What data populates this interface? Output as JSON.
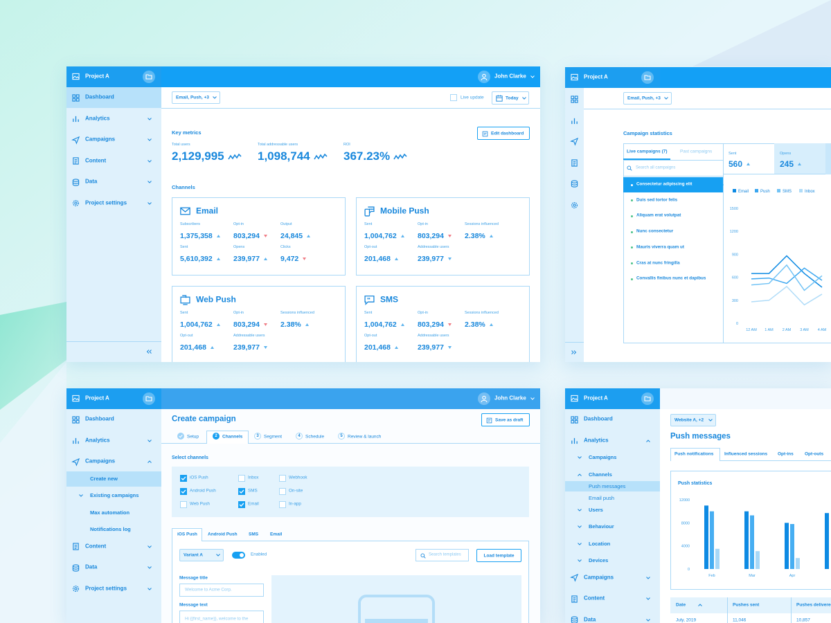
{
  "dashboard": {
    "project": "Project A",
    "user": "John Clarke",
    "nav": [
      {
        "label": "Dashboard",
        "level": 0,
        "icon": "grid",
        "active": true
      },
      {
        "label": "Analytics",
        "level": 0,
        "icon": "bars",
        "chevron": "down"
      },
      {
        "label": "Campaigns",
        "level": 0,
        "icon": "send",
        "chevron": "down"
      },
      {
        "label": "Content",
        "level": 0,
        "icon": "doc",
        "chevron": "down"
      },
      {
        "label": "Data",
        "level": 0,
        "icon": "db",
        "chevron": "down"
      },
      {
        "label": "Project settings",
        "level": 0,
        "icon": "gear",
        "chevron": "down"
      }
    ],
    "filter": "Email, Push, +3",
    "live_update": "Live update",
    "date": "Today",
    "key_metrics": "Key metrics",
    "edit_button": "Edit dashboard",
    "metrics": [
      {
        "label": "Total users",
        "value": "2,129,995"
      },
      {
        "label": "Total addressable users",
        "value": "1,098,744"
      },
      {
        "label": "ROI",
        "value": "367.23%"
      }
    ],
    "channels_heading": "Channels",
    "channels": [
      {
        "name": "Email",
        "icon": "mail",
        "stats": [
          {
            "label": "Subscribers",
            "value": "1,375,358",
            "trend": "up"
          },
          {
            "label": "Opt-in",
            "value": "803,294",
            "trend": "down-bad"
          },
          {
            "label": "Output",
            "value": "24,845",
            "trend": "up"
          },
          {
            "label": "Sent",
            "value": "5,610,392",
            "trend": "up"
          },
          {
            "label": "Opens",
            "value": "239,977",
            "trend": "up"
          },
          {
            "label": "Clicks",
            "value": "9,472",
            "trend": "down-bad"
          }
        ]
      },
      {
        "name": "Mobile Push",
        "icon": "mobile",
        "stats": [
          {
            "label": "Sent",
            "value": "1,004,762",
            "trend": "up"
          },
          {
            "label": "Opt-in",
            "value": "803,294",
            "trend": "down-bad"
          },
          {
            "label": "Sessions influenced",
            "value": "2.38%",
            "trend": "up"
          },
          {
            "label": "Opt-out",
            "value": "201,468",
            "trend": "up"
          },
          {
            "label": "Addressable users",
            "value": "239,977",
            "trend": "down"
          }
        ]
      },
      {
        "name": "Web Push",
        "icon": "web",
        "stats": [
          {
            "label": "Sent",
            "value": "1,004,762",
            "trend": "up"
          },
          {
            "label": "Opt-in",
            "value": "803,294",
            "trend": "down-bad"
          },
          {
            "label": "Sessions influenced",
            "value": "2.38%",
            "trend": "up"
          },
          {
            "label": "Opt-out",
            "value": "201,468",
            "trend": "up"
          },
          {
            "label": "Addressable users",
            "value": "239,977",
            "trend": "down"
          }
        ]
      },
      {
        "name": "SMS",
        "icon": "sms",
        "stats": [
          {
            "label": "Sent",
            "value": "1,004,762",
            "trend": "up"
          },
          {
            "label": "Opt-in",
            "value": "803,294",
            "trend": "down-bad"
          },
          {
            "label": "Sessions influenced",
            "value": "2.38%",
            "trend": "up"
          },
          {
            "label": "Opt-out",
            "value": "201,468",
            "trend": "up"
          },
          {
            "label": "Addressable users",
            "value": "239,977",
            "trend": "down"
          }
        ]
      }
    ]
  },
  "statistics": {
    "project": "Project A",
    "filter": "Email, Push, +3",
    "title": "Campaign statistics",
    "tabs": [
      "Live campaigns (7)",
      "Past campaigns"
    ],
    "search": "Search all campaigns",
    "campaigns": [
      "Consectetur adipiscing elit",
      "Duis sed tortor felis",
      "Aliquam erat volutpat",
      "Nunc consectetur",
      "Mauris viverra quam ut",
      "Cras at nunc fringilla",
      "Convallis finibus nunc et dapibus"
    ],
    "summary": [
      {
        "label": "Sent",
        "value": "560"
      },
      {
        "label": "Opens",
        "value": "245"
      }
    ]
  },
  "create": {
    "project": "Project A",
    "user": "John Clarke",
    "nav": [
      {
        "label": "Dashboard",
        "level": 0,
        "icon": "grid"
      },
      {
        "label": "Analytics",
        "level": 0,
        "icon": "bars",
        "chevron": "down"
      },
      {
        "label": "Campaigns",
        "level": 0,
        "icon": "send",
        "chevron": "up"
      },
      {
        "label": "Create new",
        "level": 1,
        "active": true
      },
      {
        "label": "Existing campaigns",
        "level": 1,
        "chevron": "down"
      },
      {
        "label": "Max automation",
        "level": 1
      },
      {
        "label": "Notifications log",
        "level": 1
      },
      {
        "label": "Content",
        "level": 0,
        "icon": "doc",
        "chevron": "down"
      },
      {
        "label": "Data",
        "level": 0,
        "icon": "db",
        "chevron": "down"
      },
      {
        "label": "Project settings",
        "level": 0,
        "icon": "gear",
        "chevron": "down"
      }
    ],
    "title": "Create campaign",
    "save": "Save as draft",
    "steps": [
      {
        "label": "Setup",
        "done": true
      },
      {
        "number": "2",
        "label": "Channels",
        "active": true
      },
      {
        "number": "3",
        "label": "Segment"
      },
      {
        "number": "4",
        "label": "Schedule"
      },
      {
        "number": "5",
        "label": "Review & launch"
      }
    ],
    "select_channels": "Select channels",
    "channel_options": [
      {
        "label": "iOS Push",
        "checked": true
      },
      {
        "label": "Android Push",
        "checked": true
      },
      {
        "label": "Web Push",
        "checked": false
      },
      {
        "label": "Inbox",
        "checked": false
      },
      {
        "label": "SMS",
        "checked": true
      },
      {
        "label": "Email",
        "checked": true
      },
      {
        "label": "Webhook",
        "checked": false
      },
      {
        "label": "On-site",
        "checked": false
      },
      {
        "label": "In-app",
        "checked": false
      }
    ],
    "editor_tabs": [
      "iOS Push",
      "Android Push",
      "SMS",
      "Email"
    ],
    "variant": "Variant A",
    "enabled": "Enabled",
    "search_templates": "Search templates",
    "load_template": "Load template",
    "message_title_label": "Message title",
    "message_title_placeholder": "Welcome to Acme Corp.",
    "message_text_label": "Message text",
    "message_text_placeholder": "Hi {{first_name}}, welcome to the"
  },
  "push": {
    "project": "Project A",
    "nav": [
      {
        "label": "Dashboard",
        "level": 0,
        "icon": "grid"
      },
      {
        "label": "Analytics",
        "level": 0,
        "icon": "bars",
        "chevron": "up"
      },
      {
        "label": "Campaigns",
        "level": 1,
        "chevron": "down"
      },
      {
        "label": "Channels",
        "level": 1,
        "chevron": "up"
      },
      {
        "label": "Push messages",
        "level": 2,
        "active": true
      },
      {
        "label": "Email push",
        "level": 2
      },
      {
        "label": "Users",
        "level": 1,
        "chevron": "down"
      },
      {
        "label": "Behaviour",
        "level": 1,
        "chevron": "down"
      },
      {
        "label": "Location",
        "level": 1,
        "chevron": "down"
      },
      {
        "label": "Devices",
        "level": 1,
        "chevron": "down"
      },
      {
        "label": "Campaigns",
        "level": 0,
        "icon": "send",
        "chevron": "down"
      },
      {
        "label": "Content",
        "level": 0,
        "icon": "doc",
        "chevron": "down"
      },
      {
        "label": "Data",
        "level": 0,
        "icon": "db",
        "chevron": "down"
      }
    ],
    "filter": "Website A, +2",
    "title": "Push messages",
    "tabs": [
      "Push notifications",
      "Influenced sessions",
      "Opt-ins",
      "Opt-outs"
    ],
    "table": {
      "columns": [
        "Date",
        "Pushes sent",
        "Pushes delivered"
      ],
      "rows": [
        [
          "July, 2019",
          "11,046",
          "10,857"
        ]
      ]
    }
  },
  "chart_data": [
    {
      "type": "line",
      "categories": [
        "12 AM",
        "1 AM",
        "2 AM",
        "3 AM",
        "4 AM"
      ],
      "series": [
        {
          "name": "Email",
          "color": "#0d8ae3",
          "values": [
            650,
            650,
            880,
            650,
            470
          ]
        },
        {
          "name": "Push",
          "color": "#3aa6f0",
          "values": [
            580,
            590,
            520,
            720,
            560
          ]
        },
        {
          "name": "SMS",
          "color": "#72c3f5",
          "values": [
            500,
            520,
            760,
            430,
            620
          ]
        },
        {
          "name": "Inbox",
          "color": "#b0dcf8",
          "values": [
            280,
            300,
            480,
            240,
            380
          ]
        }
      ],
      "ylim": [
        0,
        1500
      ],
      "yticks": [
        0,
        300,
        600,
        900,
        1200,
        1500
      ],
      "grid": false
    },
    {
      "type": "bar",
      "title": "Push statistics",
      "categories": [
        "Feb",
        "Mar",
        "Apr",
        null
      ],
      "series": [
        {
          "color": "#0d8ae3",
          "values": [
            11000,
            10000,
            8000,
            9700
          ]
        },
        {
          "color": "#47aef2",
          "values": [
            10000,
            9300,
            7800,
            null
          ]
        },
        {
          "color": "#a8d8f7",
          "values": [
            3500,
            3100,
            1900,
            null
          ]
        }
      ],
      "ylim": [
        0,
        12000
      ],
      "yticks": [
        0,
        4000,
        8000,
        12000
      ],
      "grid": false
    }
  ]
}
